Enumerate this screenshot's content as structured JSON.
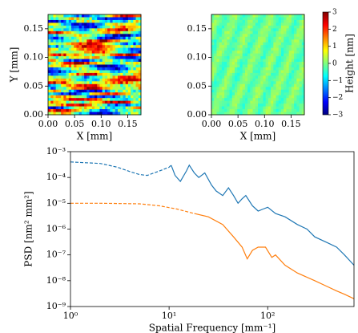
{
  "chart_data": [
    {
      "type": "heatmap",
      "xlabel": "X [mm]",
      "ylabel": "Y [mm]",
      "xlim": [
        0,
        0.175
      ],
      "ylim": [
        0,
        0.175
      ],
      "xticks": [
        {
          "value": 0,
          "label": "0.00"
        },
        0.05,
        {
          "value": 0.1,
          "label": "0.10"
        },
        0.15
      ],
      "yticks": [
        {
          "value": 0,
          "label": "0.00"
        },
        0.05,
        {
          "value": 0.1,
          "label": "0.10"
        },
        0.15
      ]
    },
    {
      "type": "heatmap",
      "xlabel": "X [mm]",
      "xlim": [
        0,
        0.175
      ],
      "ylim": [
        0,
        0.175
      ],
      "xticks": [
        {
          "value": 0,
          "label": "0.00"
        },
        0.05,
        {
          "value": 0.1,
          "label": "0.10"
        },
        0.15
      ],
      "yticks": [
        {
          "value": 0,
          "label": "0.00"
        },
        0.05,
        {
          "value": 0.1,
          "label": "0.10"
        },
        0.15
      ],
      "colorbar": {
        "label": "Height [nm]",
        "lim": [
          -3,
          3
        ],
        "ticks": [
          {
            "value": -3,
            "label": "−3"
          },
          {
            "value": -2,
            "label": "−2"
          },
          {
            "value": -1,
            "label": "−1"
          },
          0,
          1,
          2,
          3
        ]
      }
    },
    {
      "type": "line",
      "xlabel": "Spatial Frequency [mm⁻¹]",
      "ylabel": "PSD [nm² mm²]",
      "log_x": true,
      "log_y": true,
      "xlim": [
        1,
        750
      ],
      "ylim": [
        1e-09,
        0.001
      ],
      "xticks": [
        {
          "value": 1,
          "label": "10⁰"
        },
        {
          "value": 10,
          "label": "10¹"
        },
        {
          "value": 100,
          "label": "10²"
        }
      ],
      "yticks": [
        {
          "value": 1e-09,
          "label": "10⁻⁹"
        },
        {
          "value": 1e-08,
          "label": "10⁻⁸"
        },
        {
          "value": 1e-07,
          "label": "10⁻⁷"
        },
        {
          "value": 1e-06,
          "label": "10⁻⁶"
        },
        {
          "value": 1e-05,
          "label": "10⁻⁵"
        },
        {
          "value": 0.0001,
          "label": "10⁻⁴"
        },
        {
          "value": 0.001,
          "label": "10⁻³"
        }
      ],
      "series": [
        {
          "color": "#1f77b4",
          "dashed": true,
          "x": [
            1,
            2,
            3,
            4,
            5,
            6,
            8,
            10,
            10.5
          ],
          "values": [
            0.0004,
            0.00035,
            0.00025,
            0.00017,
            0.00013,
            0.00012,
            0.00018,
            0.00025,
            0.0003
          ]
        },
        {
          "color": "#1f77b4",
          "dashed": false,
          "x": [
            10.5,
            11.5,
            13,
            15,
            16,
            18,
            20,
            23,
            27,
            30,
            35,
            40,
            45,
            50,
            55,
            60,
            70,
            80,
            90,
            100,
            120,
            150,
            200,
            250,
            300,
            400,
            500,
            600,
            750
          ],
          "values": [
            0.0003,
            0.00012,
            7e-05,
            0.00018,
            0.0003,
            0.00015,
            0.0001,
            0.00015,
            5e-05,
            3e-05,
            2e-05,
            4e-05,
            2e-05,
            1e-05,
            1.5e-05,
            2e-05,
            8e-06,
            5e-06,
            6e-06,
            7e-06,
            4e-06,
            3e-06,
            1.5e-06,
            1e-06,
            5e-07,
            3e-07,
            2e-07,
            1e-07,
            4e-08
          ]
        },
        {
          "color": "#ff7f0e",
          "dashed": true,
          "x": [
            1,
            2,
            3,
            5,
            8,
            12,
            18
          ],
          "values": [
            1e-05,
            1e-05,
            9.8e-06,
            9.5e-06,
            8e-06,
            6e-06,
            4e-06
          ]
        },
        {
          "color": "#ff7f0e",
          "dashed": false,
          "x": [
            18,
            25,
            35,
            45,
            55,
            62,
            70,
            80,
            95,
            110,
            120,
            150,
            200,
            300,
            400,
            500,
            600,
            750
          ],
          "values": [
            4e-06,
            3e-06,
            1.5e-06,
            5e-07,
            2e-07,
            7e-08,
            1.5e-07,
            2e-07,
            2e-07,
            8e-08,
            1e-07,
            4e-08,
            2e-08,
            1e-08,
            6e-09,
            4e-09,
            3e-09,
            2e-09
          ]
        }
      ]
    }
  ]
}
